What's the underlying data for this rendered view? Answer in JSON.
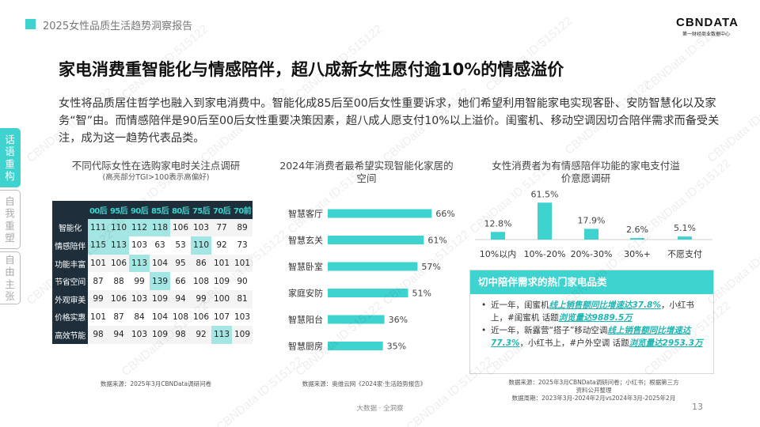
{
  "header": {
    "title": "2025女性品质生活趋势洞察报告"
  },
  "logo": {
    "text": "CBNDATA",
    "subtitle": "第一财经商业数据中心"
  },
  "headline": "家电消费重智能化与情感陪伴，超八成新女性愿付逾10%的情感溢价",
  "intro": "女性将品质居住哲学也融入到家电消费中。智能化成85后至00后女性重要诉求，她们希望利用智能家电实现客卧、安防智慧化以及家务“智”由。而情感陪伴是90后至00后女性重要决策因素，超八成人愿支付10%以上溢价。闺蜜机、移动空调因切合陪伴需求而备受关注，成为这一趋势代表品类。",
  "side_tabs": [
    "话语重构",
    "自我重塑",
    "自由主张"
  ],
  "panel1": {
    "title": "不同代际女性在选购家电时关注点调研",
    "subtitle": "(高亮部分TGI>100表示高偏好)",
    "columns": [
      "00后",
      "95后",
      "90后",
      "85后",
      "80后",
      "75后",
      "70后",
      "70前"
    ],
    "rows": [
      {
        "label": "智能化",
        "values": [
          111,
          110,
          112,
          118,
          106,
          103,
          77,
          89
        ],
        "hi": [
          true,
          true,
          true,
          true,
          false,
          false,
          false,
          false
        ]
      },
      {
        "label": "情感陪伴",
        "values": [
          115,
          113,
          103,
          63,
          53,
          110,
          92,
          73
        ],
        "hi": [
          true,
          true,
          false,
          false,
          false,
          true,
          false,
          false
        ]
      },
      {
        "label": "功能丰富",
        "values": [
          101,
          106,
          113,
          104,
          95,
          86,
          101,
          101
        ],
        "hi": [
          false,
          false,
          true,
          false,
          false,
          false,
          false,
          false
        ]
      },
      {
        "label": "节省空间",
        "values": [
          87,
          88,
          99,
          139,
          66,
          108,
          109,
          90
        ],
        "hi": [
          false,
          false,
          false,
          true,
          false,
          false,
          false,
          false
        ]
      },
      {
        "label": "外观审美",
        "values": [
          99,
          106,
          103,
          109,
          94,
          99,
          100,
          81
        ],
        "hi": [
          false,
          false,
          false,
          false,
          false,
          false,
          false,
          false
        ]
      },
      {
        "label": "价格实惠",
        "values": [
          101,
          87,
          84,
          104,
          108,
          106,
          107,
          103
        ],
        "hi": [
          false,
          false,
          false,
          false,
          false,
          false,
          false,
          false
        ]
      },
      {
        "label": "高效节能",
        "values": [
          98,
          94,
          103,
          109,
          98,
          92,
          113,
          109
        ],
        "hi": [
          false,
          false,
          false,
          false,
          false,
          false,
          true,
          false
        ]
      }
    ],
    "source": "数据来源：2025年3月CBNData调研问卷"
  },
  "panel2": {
    "title": "2024年消费者最希望实现智能化家居的空间",
    "source": "数据来源：奥维云网《2024家·生活趋势报告》"
  },
  "panel3": {
    "title": "女性消费者为有情感陪伴功能的家电支付溢价意愿调研",
    "callout_title": "切中陪伴需求的热门家电品类",
    "bullets": [
      [
        {
          "t": "近一年，闺蜜机"
        },
        {
          "t": "线上销售额同比增速达37.8%",
          "hl": true
        },
        {
          "t": "，小红书上，#闺蜜机 话题"
        },
        {
          "t": "浏览量达9889.5万",
          "hl": true
        }
      ],
      [
        {
          "t": "近一年，新露营“搭子”移动空调"
        },
        {
          "t": "线上销售额同比增速达77.3%",
          "hl": true
        },
        {
          "t": "，小红书上，#户外空调 话题"
        },
        {
          "t": "浏览量达2953.3万",
          "hl": true
        }
      ]
    ],
    "source_line1": "数据来源：2025年3月CBNData调研问卷；小红书；根据第三方",
    "source_line2": "资料公开整理",
    "source_line3": "数据周期：2023年3月-2024年2月vs2024年3月-2025年2月"
  },
  "chart_data": [
    {
      "type": "bar",
      "orientation": "horizontal",
      "categories": [
        "智慧客厅",
        "智慧玄关",
        "智慧卧室",
        "家庭安防",
        "智慧阳台",
        "智慧厨房"
      ],
      "values": [
        66,
        61,
        57,
        51,
        36,
        35
      ],
      "value_labels": [
        "66%",
        "61%",
        "57%",
        "51%",
        "36%",
        "35%"
      ],
      "unit": "%",
      "color": "#3ED3CF"
    },
    {
      "type": "bar",
      "orientation": "vertical",
      "categories": [
        "10%以内",
        "10%-20%",
        "20%-30%",
        "30%+",
        "不愿支付"
      ],
      "values": [
        12.8,
        61.5,
        17.9,
        2.6,
        5.1
      ],
      "value_labels": [
        "12.8%",
        "61.5%",
        "17.9%",
        "2.6%",
        "5.1%"
      ],
      "unit": "%",
      "color": "#3ED3CF"
    }
  ],
  "colors": {
    "accent": "#3ED3CF",
    "dark": "#1E2F3B",
    "highlight_cell": "#A3E6E3",
    "emphasis_text": "#1FB6B2"
  },
  "footer": {
    "text": "大数据 · 全洞察",
    "page": "13"
  },
  "watermark": "CBNData ID:515122"
}
